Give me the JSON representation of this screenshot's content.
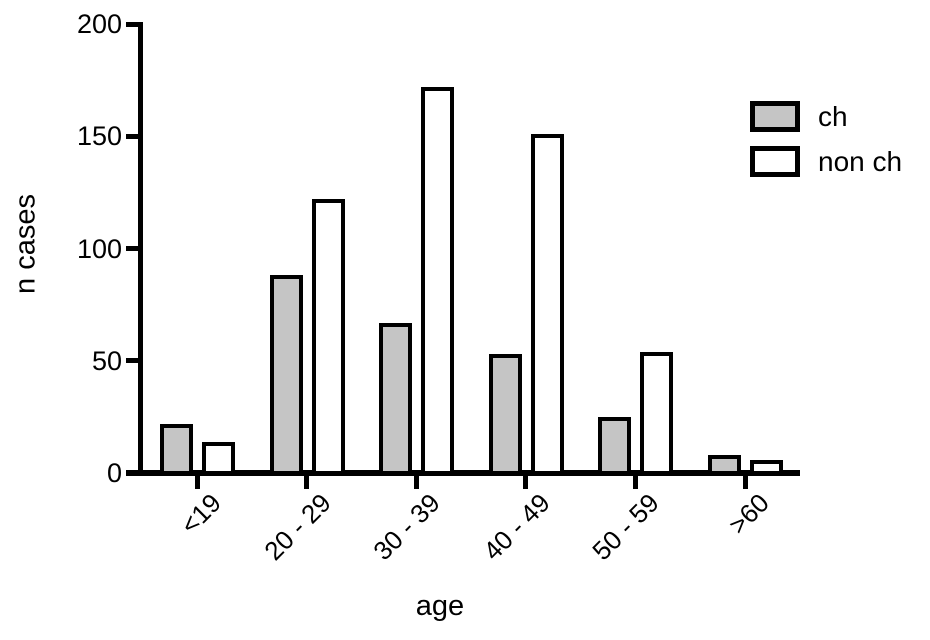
{
  "chart_data": {
    "type": "bar",
    "title": "",
    "xlabel": "age",
    "ylabel": "n cases",
    "categories": [
      "<19",
      "20 - 29",
      "30 - 39",
      "40 - 49",
      "50 - 59",
      ">60"
    ],
    "series": [
      {
        "name": "ch",
        "fill": "#c5c5c5",
        "values": [
          22,
          88,
          67,
          53,
          25,
          8
        ]
      },
      {
        "name": "non ch",
        "fill": "#ffffff",
        "values": [
          14,
          122,
          172,
          151,
          54,
          6
        ]
      }
    ],
    "ylim": [
      0,
      200
    ],
    "yticks": [
      0,
      50,
      100,
      150,
      200
    ],
    "grid": false,
    "legend_position": "top-right",
    "bar_edge_color": "#000000",
    "axis_color": "#000000",
    "background_color": "#ffffff"
  }
}
